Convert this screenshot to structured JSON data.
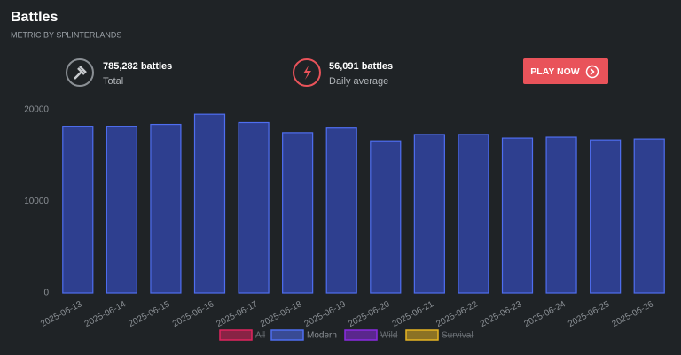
{
  "header": {
    "title": "Battles",
    "subtitle": "METRIC BY SPLINTERLANDS"
  },
  "stats": [
    {
      "value": "785,282 battles",
      "label": "Total"
    },
    {
      "value": "56,091 battles",
      "label": "Daily average"
    }
  ],
  "button": "PLAY NOW",
  "chart_data": {
    "type": "bar",
    "categories": [
      "2025-06-13",
      "2025-06-14",
      "2025-06-15",
      "2025-06-16",
      "2025-06-17",
      "2025-06-18",
      "2025-06-19",
      "2025-06-20",
      "2025-06-21",
      "2025-06-22",
      "2025-06-23",
      "2025-06-24",
      "2025-06-25",
      "2025-06-26"
    ],
    "series": [
      {
        "name": "Modern",
        "color": "#4f6ef0",
        "values": [
          18200,
          18200,
          18400,
          19500,
          18600,
          17500,
          18000,
          16600,
          17300,
          17300,
          16900,
          17000,
          16700,
          16800
        ]
      }
    ],
    "legend": [
      {
        "name": "All",
        "color": "#e0245e",
        "hidden": true
      },
      {
        "name": "Modern",
        "color": "#4f6ef0",
        "hidden": false
      },
      {
        "name": "Wild",
        "color": "#8a2be2",
        "hidden": true
      },
      {
        "name": "Survival",
        "color": "#e6b422",
        "hidden": true
      }
    ],
    "ylim": [
      0,
      20000
    ],
    "yticks": [
      0,
      10000,
      20000
    ],
    "grid": false
  }
}
